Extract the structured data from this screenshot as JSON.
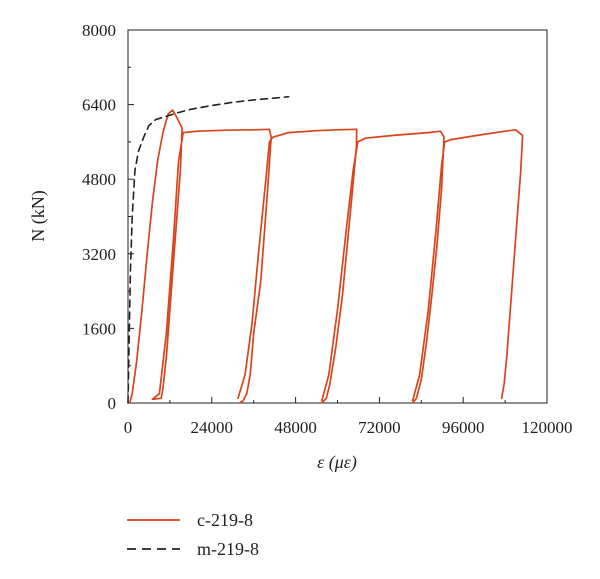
{
  "chart_data": {
    "type": "line",
    "title": "",
    "xlabel": "ε (με)",
    "ylabel": "N (kN)",
    "xlim": [
      0,
      120000
    ],
    "ylim": [
      0,
      8000
    ],
    "xticks": [
      0,
      24000,
      48000,
      72000,
      96000,
      120000
    ],
    "yticks": [
      0,
      1600,
      3200,
      4800,
      6400,
      8000
    ],
    "grid": false,
    "legend_position": "bottom",
    "series": [
      {
        "name": "c-219-8",
        "color": "#d9441c",
        "style": "solid",
        "segments": [
          [
            [
              500,
              0
            ],
            [
              1200,
              200
            ],
            [
              2500,
              900
            ],
            [
              4000,
              2000
            ],
            [
              5500,
              3200
            ],
            [
              7000,
              4300
            ],
            [
              8500,
              5200
            ],
            [
              10000,
              5800
            ],
            [
              11500,
              6200
            ],
            [
              12800,
              6280
            ],
            [
              13800,
              6150
            ],
            [
              14800,
              6000
            ],
            [
              15500,
              5900
            ],
            [
              15000,
              5000
            ],
            [
              14000,
              4000
            ],
            [
              13000,
              3000
            ],
            [
              12000,
              2000
            ],
            [
              11000,
              1000
            ],
            [
              10000,
              300
            ],
            [
              9500,
              100
            ],
            [
              7000,
              80
            ],
            [
              9000,
              200
            ],
            [
              11000,
              1500
            ],
            [
              13000,
              3500
            ],
            [
              14500,
              5200
            ],
            [
              15800,
              5800
            ]
          ],
          [
            [
              15800,
              5800
            ],
            [
              20000,
              5830
            ],
            [
              28000,
              5850
            ],
            [
              36000,
              5860
            ],
            [
              40500,
              5870
            ],
            [
              41000,
              5700
            ],
            [
              40000,
              4600
            ],
            [
              39000,
              3600
            ],
            [
              38000,
              2600
            ],
            [
              36000,
              1500
            ],
            [
              35000,
              600
            ],
            [
              34000,
              200
            ],
            [
              33000,
              50
            ],
            [
              32000,
              0
            ]
          ],
          [
            [
              31500,
              100
            ],
            [
              33500,
              600
            ],
            [
              35500,
              1700
            ],
            [
              37500,
              3300
            ],
            [
              39500,
              4800
            ],
            [
              40500,
              5600
            ],
            [
              41500,
              5700
            ],
            [
              46000,
              5800
            ],
            [
              54000,
              5840
            ],
            [
              60000,
              5860
            ],
            [
              65500,
              5870
            ],
            [
              65400,
              5500
            ],
            [
              64200,
              4500
            ],
            [
              62800,
              3400
            ],
            [
              61400,
              2300
            ],
            [
              59500,
              1200
            ],
            [
              57800,
              400
            ],
            [
              56800,
              100
            ],
            [
              55500,
              0
            ]
          ],
          [
            [
              55500,
              50
            ],
            [
              57500,
              600
            ],
            [
              60000,
              2000
            ],
            [
              62500,
              3700
            ],
            [
              64500,
              5000
            ],
            [
              65800,
              5600
            ],
            [
              68000,
              5680
            ],
            [
              76000,
              5740
            ],
            [
              86000,
              5800
            ],
            [
              89500,
              5830
            ],
            [
              90500,
              5700
            ],
            [
              89800,
              4600
            ],
            [
              88500,
              3400
            ],
            [
              87000,
              2300
            ],
            [
              85500,
              1300
            ],
            [
              84000,
              500
            ],
            [
              82600,
              100
            ],
            [
              81500,
              0
            ]
          ],
          [
            [
              81500,
              50
            ],
            [
              83500,
              600
            ],
            [
              86000,
              2000
            ],
            [
              88200,
              3700
            ],
            [
              89800,
              5100
            ],
            [
              90700,
              5600
            ],
            [
              92500,
              5650
            ],
            [
              100000,
              5740
            ],
            [
              108000,
              5830
            ],
            [
              111000,
              5860
            ],
            [
              113000,
              5740
            ],
            [
              112500,
              5000
            ],
            [
              111500,
              4000
            ],
            [
              110500,
              3000
            ],
            [
              109500,
              2000
            ],
            [
              108500,
              1000
            ],
            [
              107700,
              400
            ],
            [
              107000,
              100
            ]
          ]
        ]
      },
      {
        "name": "m-219-8",
        "color": "#222222",
        "style": "dashed",
        "segments": [
          [
            [
              0,
              0
            ],
            [
              300,
              1200
            ],
            [
              700,
              2800
            ],
            [
              1200,
              4000
            ],
            [
              2000,
              5000
            ],
            [
              3000,
              5400
            ],
            [
              4500,
              5700
            ],
            [
              6000,
              5950
            ],
            [
              8000,
              6080
            ],
            [
              11000,
              6150
            ],
            [
              14000,
              6220
            ],
            [
              18000,
              6300
            ],
            [
              24000,
              6380
            ],
            [
              30000,
              6450
            ],
            [
              36000,
              6500
            ],
            [
              42000,
              6540
            ],
            [
              46000,
              6570
            ]
          ]
        ]
      }
    ]
  },
  "legend": [
    {
      "label": "c-219-8",
      "color": "#d9441c",
      "style": "solid"
    },
    {
      "label": "m-219-8",
      "color": "#222222",
      "style": "dashed"
    }
  ]
}
